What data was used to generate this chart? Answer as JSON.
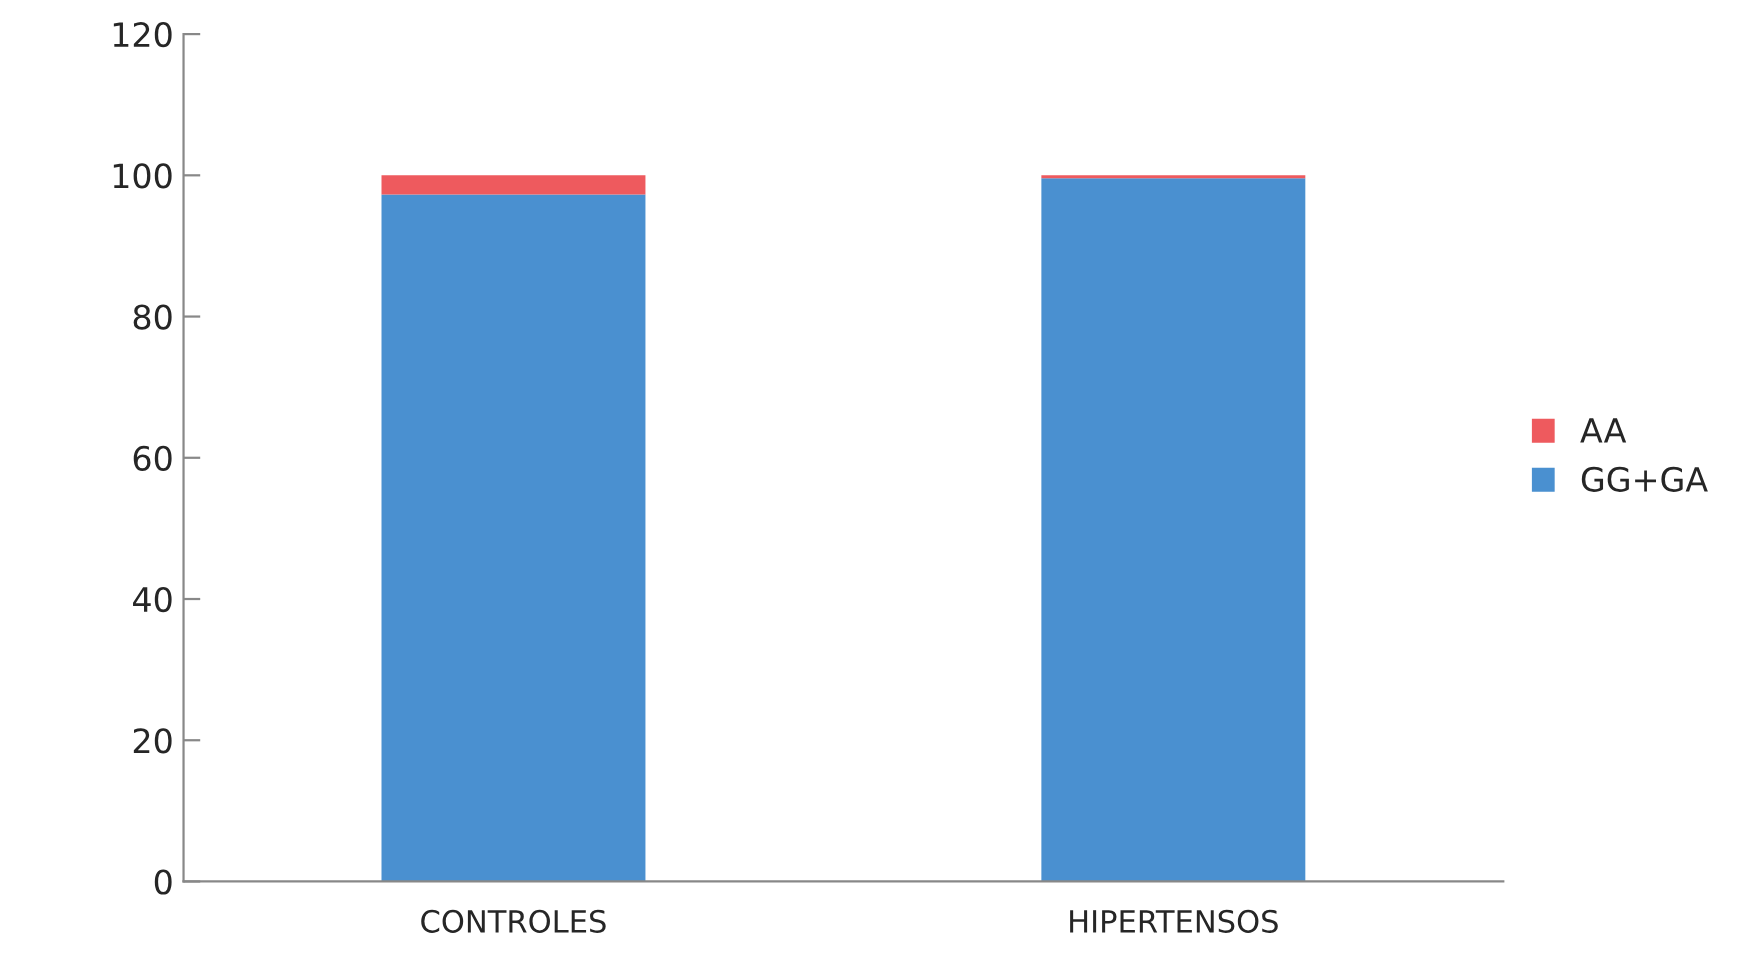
{
  "chart_data": {
    "type": "bar",
    "stacked": true,
    "categories": [
      "CONTROLES",
      "HIPERTENSOS"
    ],
    "series": [
      {
        "name": "GG+GA",
        "color": "#4a90d0",
        "values": [
          97.3,
          99.6
        ]
      },
      {
        "name": "AA",
        "color": "#ee5a5e",
        "values": [
          2.7,
          0.4
        ]
      }
    ],
    "ylim": [
      0,
      120
    ],
    "yticks": [
      0,
      20,
      40,
      60,
      80,
      100,
      120
    ],
    "grid": false,
    "legend": "right"
  }
}
